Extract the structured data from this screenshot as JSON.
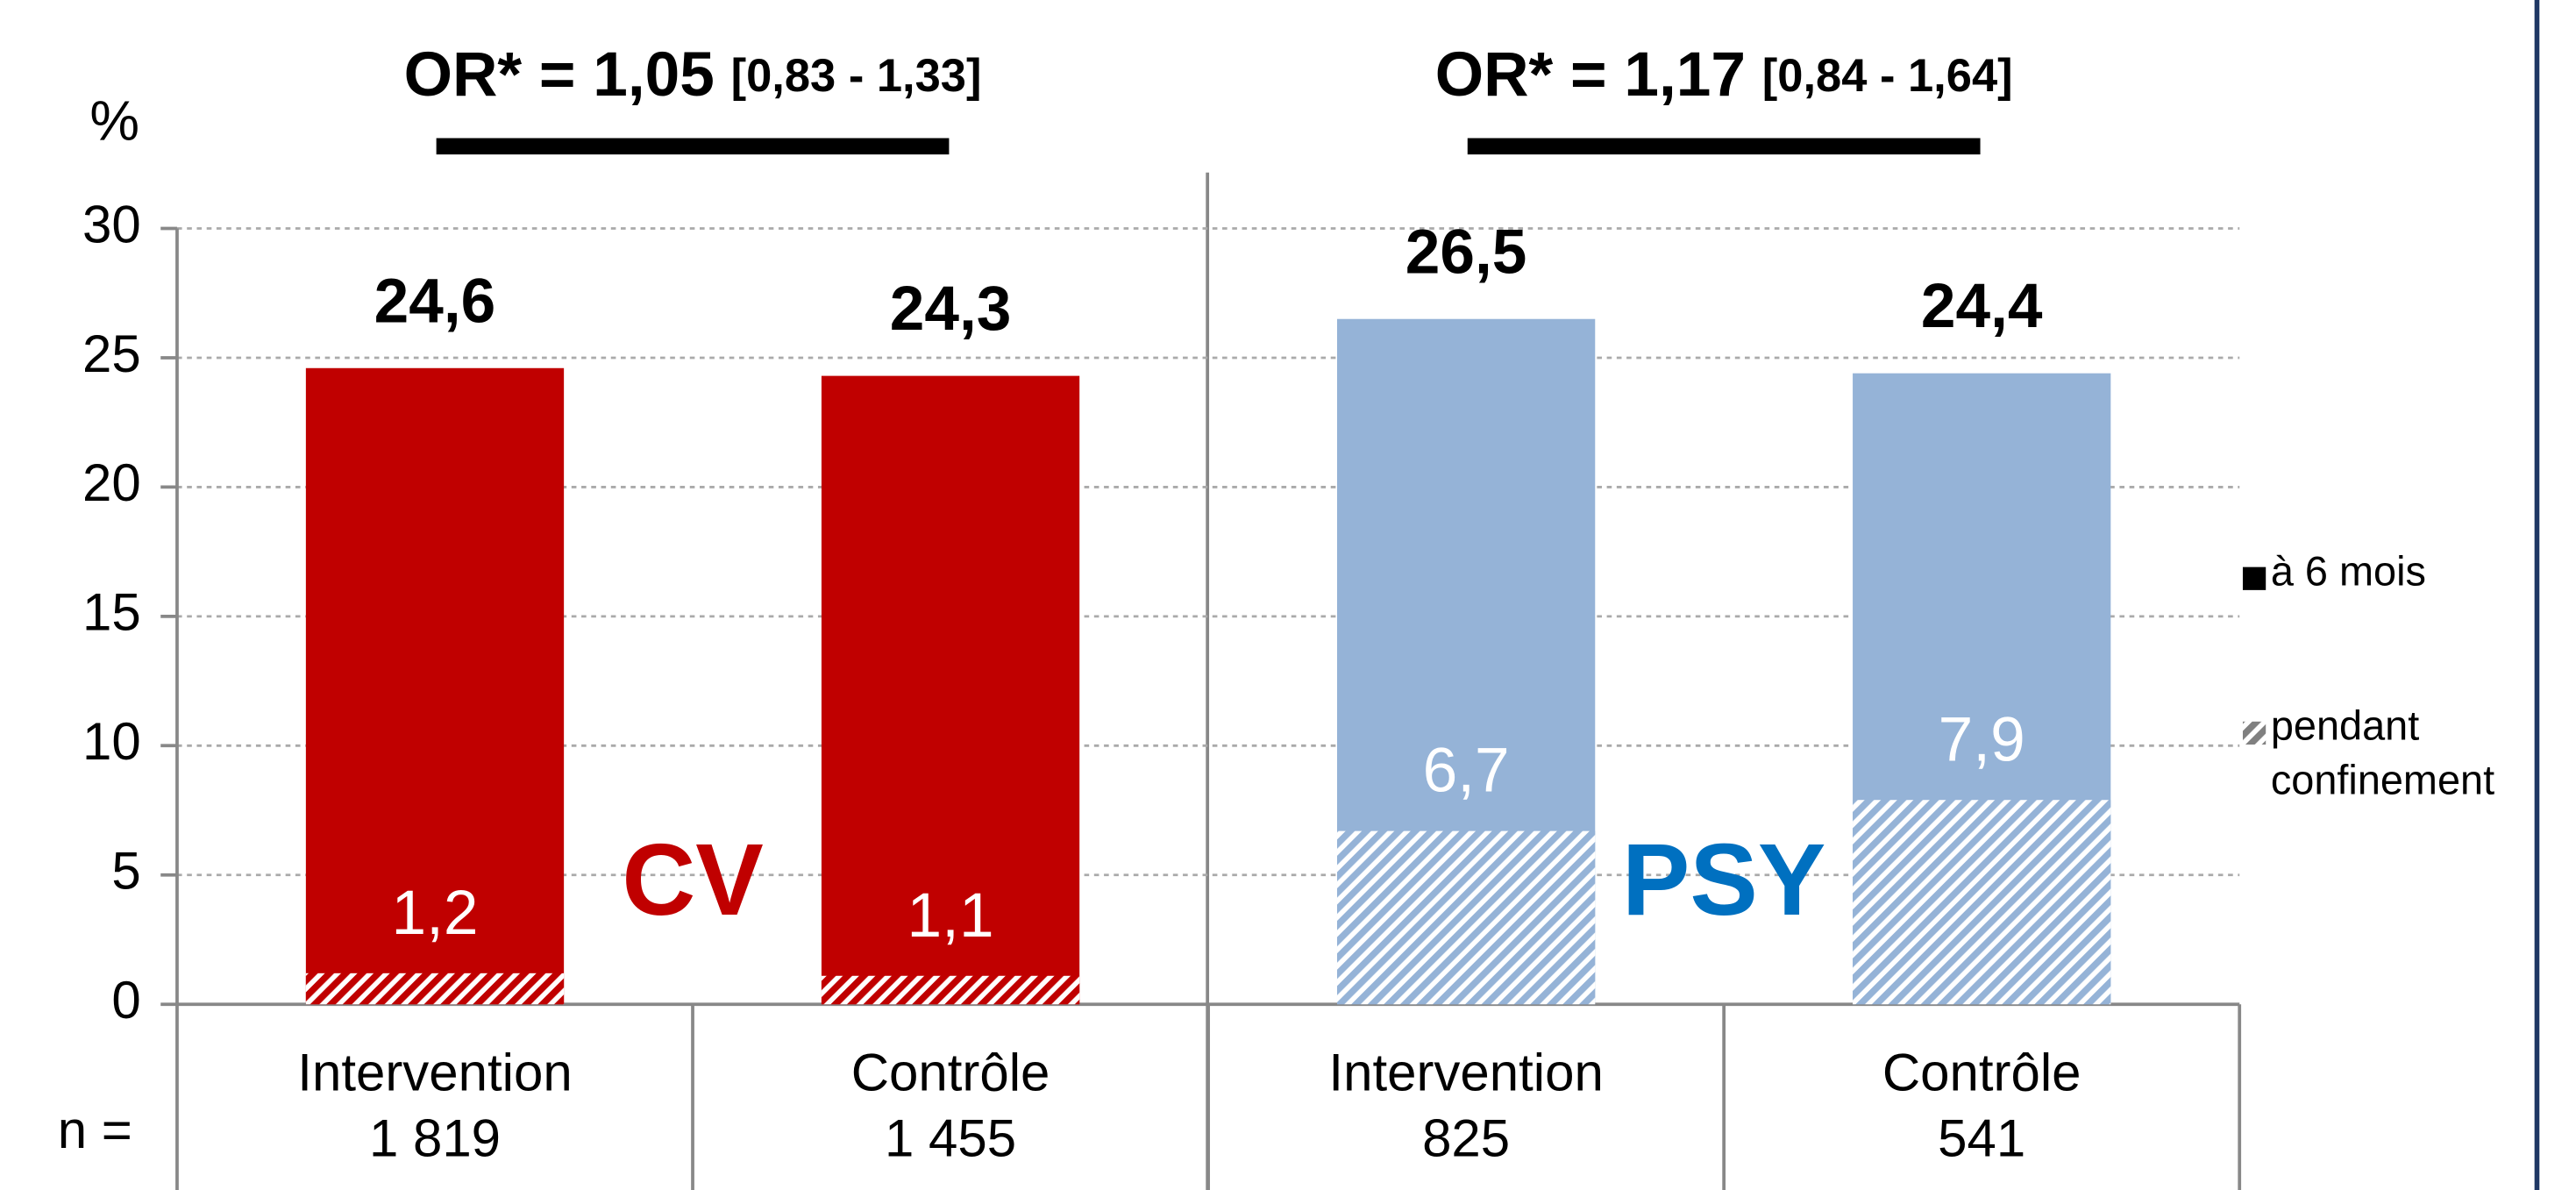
{
  "chart_data": {
    "type": "bar",
    "y_label": "%",
    "categories": [
      "Intervention",
      "Contrôle",
      "Intervention",
      "Contrôle"
    ],
    "n_label": "n =",
    "n": [
      "1 819",
      "1 455",
      "825",
      "541"
    ],
    "series": [
      {
        "name": "à 6 mois",
        "colors": [
          "#c00000",
          "#c00000",
          "#95b3d7",
          "#95b3d7"
        ],
        "legend_color": "#000000",
        "values": [
          24.6,
          24.3,
          26.5,
          24.4
        ],
        "value_labels": [
          "24,6",
          "24,3",
          "26,5",
          "24,4"
        ]
      },
      {
        "name": "pendant confinement",
        "hatched": true,
        "colors": [
          "#c00000",
          "#c00000",
          "#95b3d7",
          "#95b3d7"
        ],
        "legend_color": "#808080",
        "values": [
          1.2,
          1.1,
          6.7,
          7.9
        ],
        "value_labels": [
          "1,2",
          "1,1",
          "6,7",
          "7,9"
        ]
      }
    ],
    "groups": [
      {
        "label": "CV",
        "color": "#c00000",
        "or": "OR* = 1,05",
        "ci": "[0,83 - 1,33]"
      },
      {
        "label": "PSY",
        "color": "#0070c0",
        "or": "OR* = 1,17",
        "ci": "[0,84 - 1,64]"
      }
    ],
    "ylim": [
      0,
      30
    ],
    "yticks": [
      0,
      5,
      10,
      15,
      20,
      25,
      30
    ],
    "grid": true
  }
}
